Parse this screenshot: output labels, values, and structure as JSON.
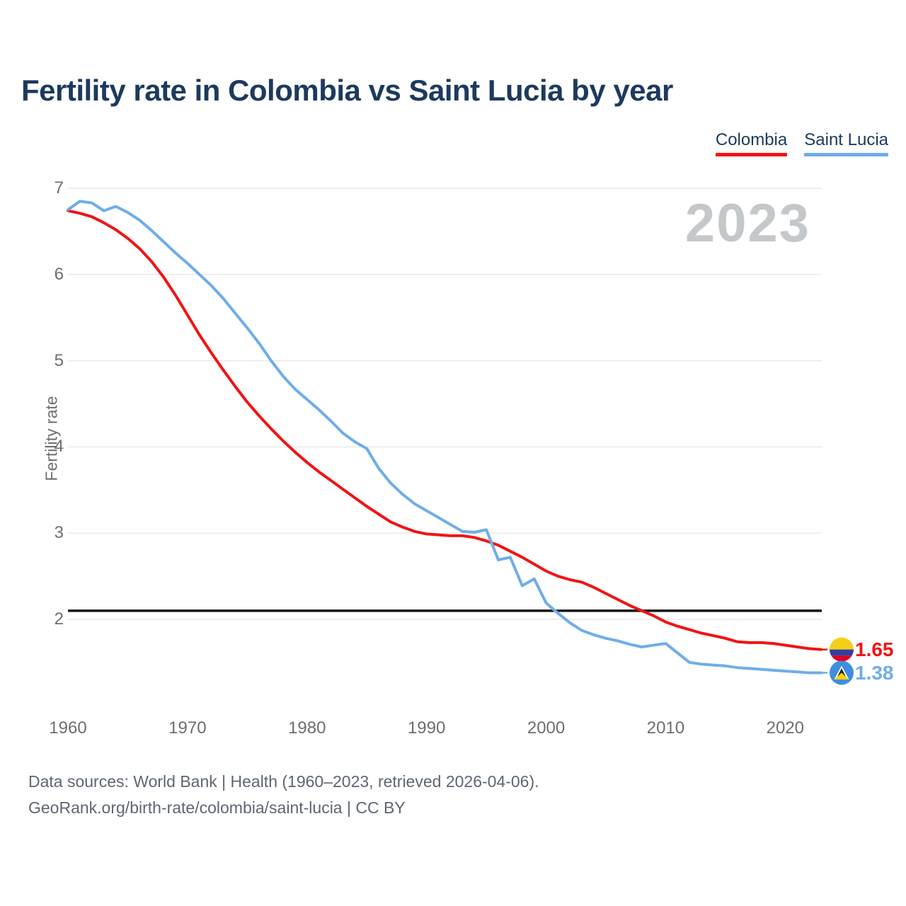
{
  "title": "Fertility rate in Colombia vs Saint Lucia by year",
  "watermark": "2023",
  "y_axis": {
    "label": "Fertility rate",
    "ticks": [
      7,
      6,
      5,
      4,
      3,
      2
    ]
  },
  "x_axis": {
    "ticks": [
      1960,
      1970,
      1980,
      1990,
      2000,
      2010,
      2020
    ]
  },
  "reference_line": {
    "value": 2.1,
    "color": "#141414"
  },
  "end_labels": [
    {
      "series": "Colombia",
      "value": "1.65",
      "flag": "colombia-flag"
    },
    {
      "series": "Saint Lucia",
      "value": "1.38",
      "flag": "saint-lucia-flag"
    }
  ],
  "footer": {
    "line1": "Data sources: World Bank | Health (1960–2023, retrieved 2026-04-06).",
    "line2": "GeoRank.org/birth-rate/colombia/saint-lucia | CC BY"
  },
  "chart_data": {
    "type": "line",
    "title": "Fertility rate in Colombia vs Saint Lucia by year",
    "xlabel": "",
    "ylabel": "Fertility rate",
    "ylim": [
      1.2,
      7.1
    ],
    "yticks": [
      2,
      3,
      4,
      5,
      6,
      7
    ],
    "xticks": [
      1960,
      1970,
      1980,
      1990,
      2000,
      2010,
      2020
    ],
    "grid": "horizontal",
    "legend_position": "top-right",
    "annotation_reference_line": 2.1,
    "x": [
      1960,
      1961,
      1962,
      1963,
      1964,
      1965,
      1966,
      1967,
      1968,
      1969,
      1970,
      1971,
      1972,
      1973,
      1974,
      1975,
      1976,
      1977,
      1978,
      1979,
      1980,
      1981,
      1982,
      1983,
      1984,
      1985,
      1986,
      1987,
      1988,
      1989,
      1990,
      1991,
      1992,
      1993,
      1994,
      1995,
      1996,
      1997,
      1998,
      1999,
      2000,
      2001,
      2002,
      2003,
      2004,
      2005,
      2006,
      2007,
      2008,
      2009,
      2010,
      2011,
      2012,
      2013,
      2014,
      2015,
      2016,
      2017,
      2018,
      2019,
      2020,
      2021,
      2022,
      2023
    ],
    "series": [
      {
        "name": "Colombia",
        "color": "#f01414",
        "values": [
          6.74,
          6.71,
          6.67,
          6.6,
          6.52,
          6.42,
          6.3,
          6.15,
          5.97,
          5.76,
          5.53,
          5.3,
          5.09,
          4.89,
          4.7,
          4.52,
          4.36,
          4.21,
          4.07,
          3.94,
          3.82,
          3.71,
          3.61,
          3.51,
          3.41,
          3.31,
          3.22,
          3.13,
          3.07,
          3.02,
          2.99,
          2.98,
          2.97,
          2.97,
          2.95,
          2.91,
          2.86,
          2.79,
          2.72,
          2.64,
          2.56,
          2.5,
          2.46,
          2.43,
          2.37,
          2.3,
          2.23,
          2.16,
          2.1,
          2.04,
          1.97,
          1.92,
          1.88,
          1.84,
          1.81,
          1.78,
          1.74,
          1.73,
          1.73,
          1.72,
          1.7,
          1.68,
          1.66,
          1.65
        ]
      },
      {
        "name": "Saint Lucia",
        "color": "#6fade8",
        "values": [
          6.75,
          6.85,
          6.83,
          6.74,
          6.79,
          6.72,
          6.63,
          6.51,
          6.38,
          6.25,
          6.13,
          6.0,
          5.87,
          5.72,
          5.55,
          5.38,
          5.2,
          5.0,
          4.82,
          4.67,
          4.55,
          4.43,
          4.3,
          4.16,
          4.06,
          3.98,
          3.75,
          3.58,
          3.45,
          3.34,
          3.26,
          3.18,
          3.1,
          3.02,
          3.01,
          3.04,
          2.69,
          2.72,
          2.39,
          2.47,
          2.19,
          2.07,
          1.96,
          1.87,
          1.82,
          1.78,
          1.75,
          1.71,
          1.68,
          1.7,
          1.72,
          1.61,
          1.5,
          1.48,
          1.47,
          1.46,
          1.44,
          1.43,
          1.42,
          1.41,
          1.4,
          1.39,
          1.38,
          1.38
        ]
      }
    ]
  }
}
